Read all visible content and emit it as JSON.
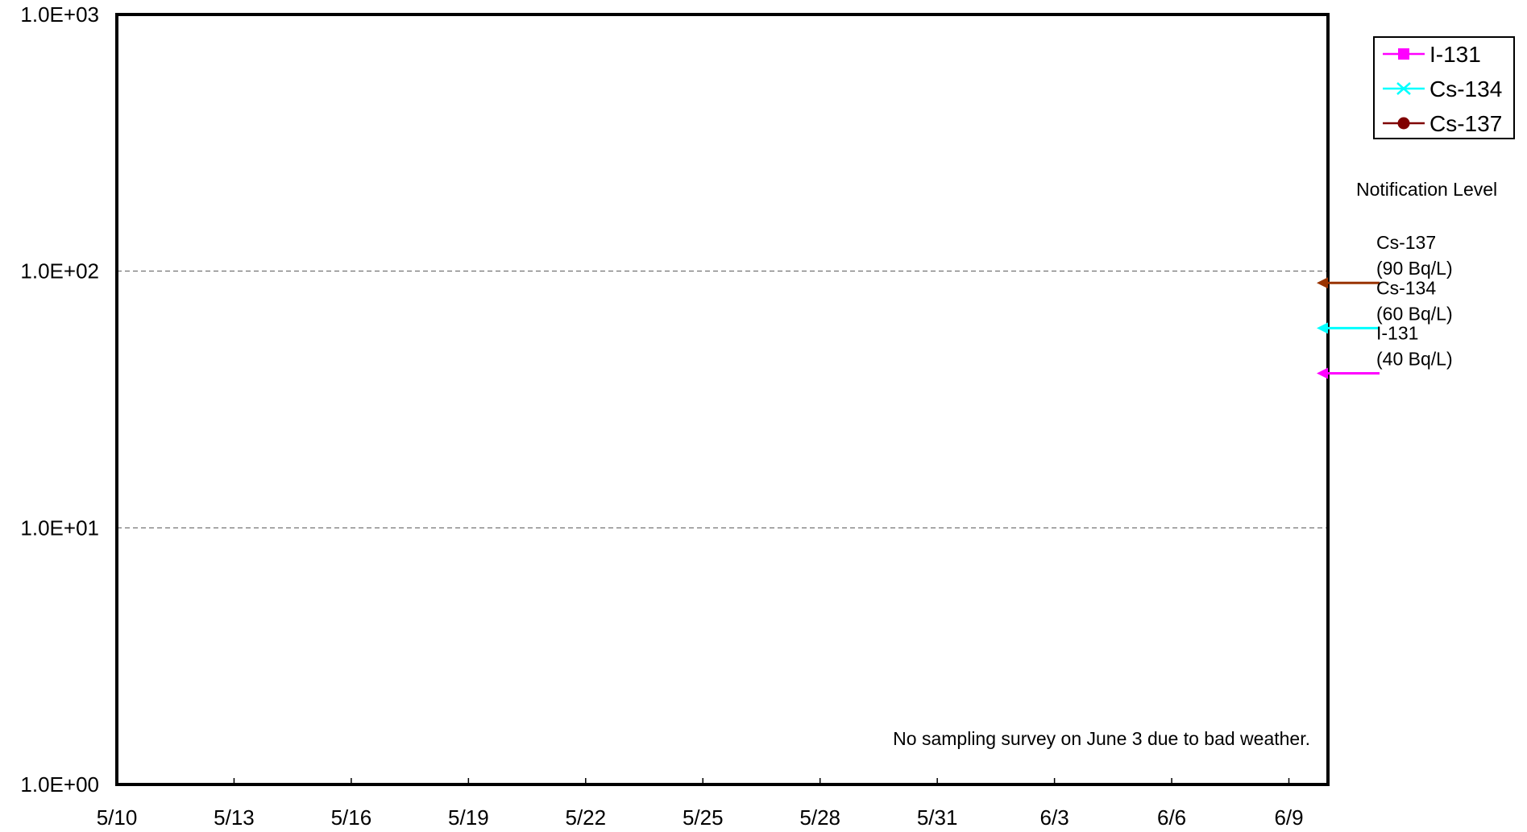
{
  "chart_data": {
    "type": "line",
    "title": "",
    "xlabel": "",
    "ylabel": "",
    "scale": "log",
    "ylim": [
      1,
      1000
    ],
    "y_ticks": [
      {
        "value": 1,
        "label": "1.0E+00"
      },
      {
        "value": 10,
        "label": "1.0E+01"
      },
      {
        "value": 100,
        "label": "1.0E+02"
      },
      {
        "value": 1000,
        "label": "1.0E+03"
      }
    ],
    "x_ticks": [
      "5/10",
      "5/13",
      "5/16",
      "5/19",
      "5/22",
      "5/25",
      "5/28",
      "5/31",
      "6/3",
      "6/6",
      "6/9"
    ],
    "xlim": [
      "5/10",
      "6/10"
    ],
    "grid": "dashed horizontal at 1.0E+01 and 1.0E+02",
    "series": [
      {
        "name": "I-131",
        "color": "#ff00ff",
        "marker": "square",
        "values": []
      },
      {
        "name": "Cs-134",
        "color": "#00ffff",
        "marker": "x",
        "values": []
      },
      {
        "name": "Cs-137",
        "color": "#800000",
        "marker": "circle",
        "values": []
      }
    ],
    "legend_position": "top-right",
    "notification_title": "Notification Level",
    "notification_levels": [
      {
        "nuclide": "Cs-137",
        "label": "(90  Bq/L)",
        "value": 90,
        "color": "#993300"
      },
      {
        "nuclide": "Cs-134",
        "label": "(60  Bq/L)",
        "value": 60,
        "color": "#00ffff"
      },
      {
        "nuclide": "I-131",
        "label": "(40  Bq/L)",
        "value": 40,
        "color": "#ff00ff"
      }
    ],
    "annotation": "No sampling survey on June 3 due to bad weather."
  }
}
